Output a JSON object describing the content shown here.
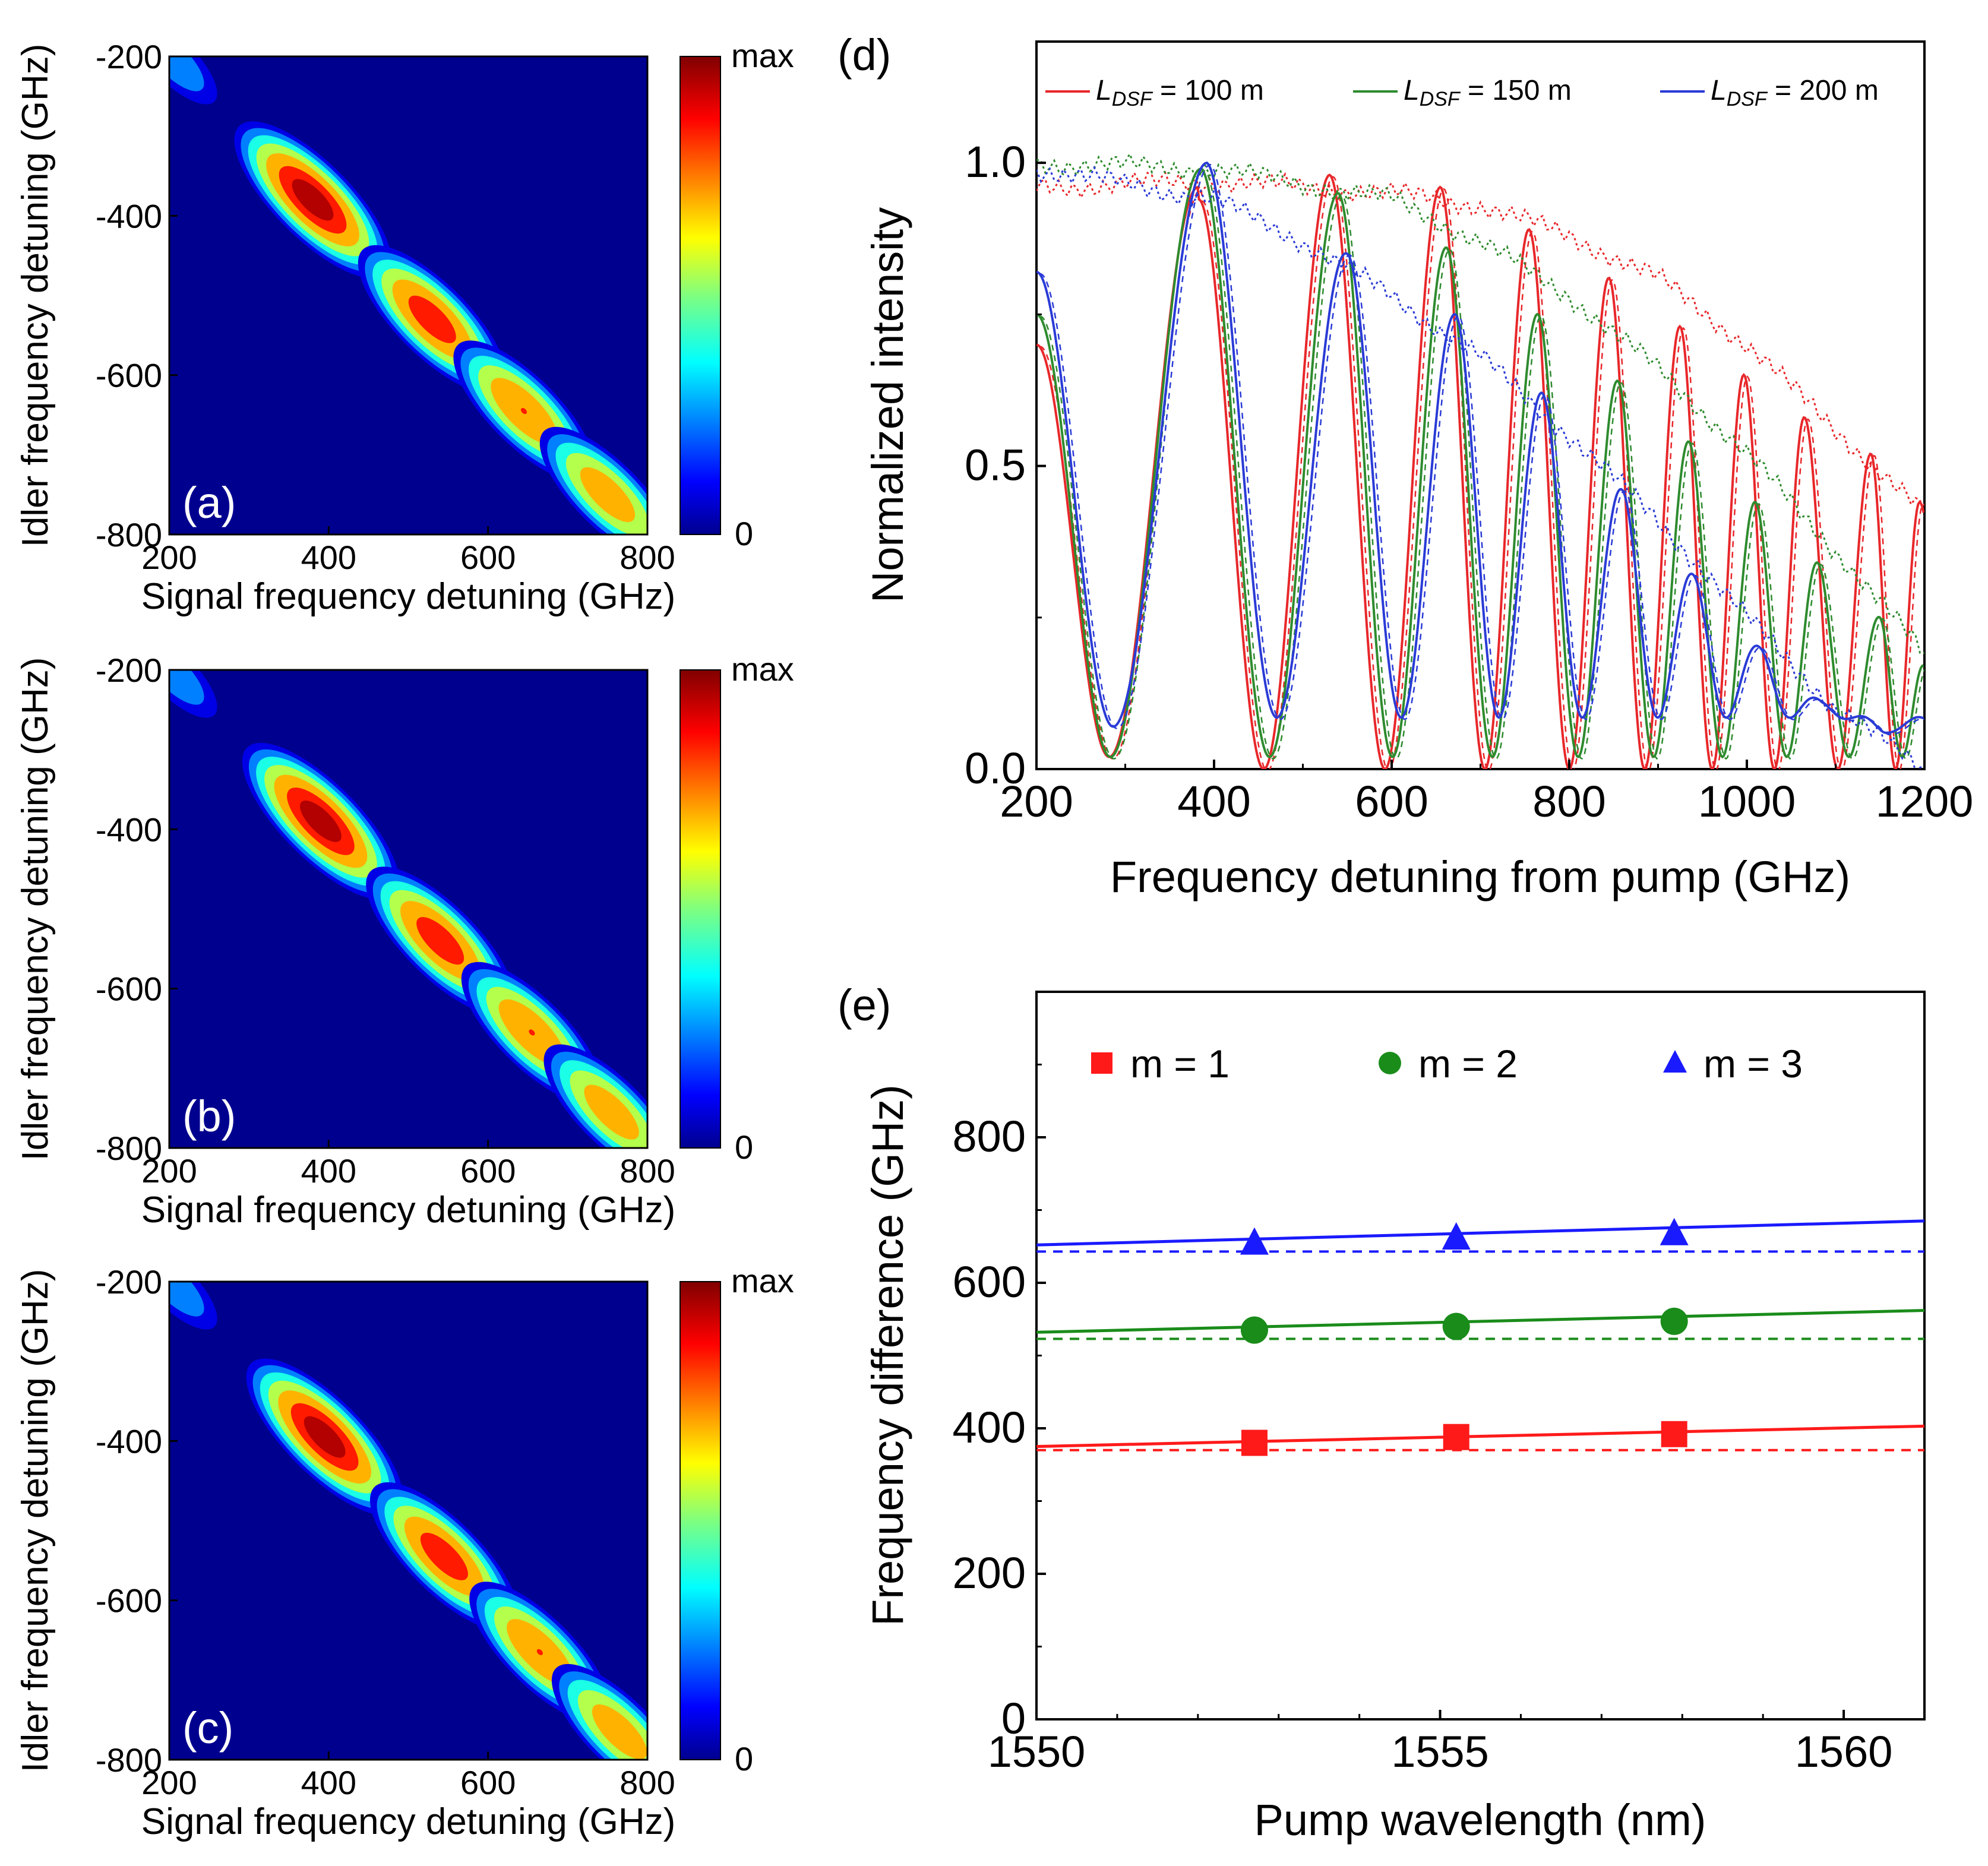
{
  "chart_data": [
    {
      "panel": "(a)",
      "type": "heatmap",
      "xlabel": "Signal frequency detuning (GHz)",
      "ylabel": "Idler frequency detuning (GHz)",
      "xlim": [
        200,
        800
      ],
      "ylim": [
        -800,
        -200
      ],
      "xticks": [
        "200",
        "400",
        "600",
        "800"
      ],
      "yticks": [
        "-200",
        "-400",
        "-600",
        "-800"
      ],
      "colorbar": {
        "max_label": "max",
        "min_label": "0"
      },
      "spots": [
        {
          "signal": 205,
          "idler": -205,
          "amplitude": 0.38
        },
        {
          "signal": 380,
          "idler": -380,
          "amplitude": 1.0
        },
        {
          "signal": 530,
          "idler": -530,
          "amplitude": 0.92
        },
        {
          "signal": 645,
          "idler": -645,
          "amplitude": 0.85
        },
        {
          "signal": 750,
          "idler": -750,
          "amplitude": 0.8
        }
      ]
    },
    {
      "panel": "(b)",
      "type": "heatmap",
      "xlabel": "Signal frequency detuning (GHz)",
      "ylabel": "Idler frequency detuning (GHz)",
      "xlim": [
        200,
        800
      ],
      "ylim": [
        -800,
        -200
      ],
      "xticks": [
        "200",
        "400",
        "600",
        "800"
      ],
      "yticks": [
        "-200",
        "-400",
        "-600",
        "-800"
      ],
      "colorbar": {
        "max_label": "max",
        "min_label": "0"
      },
      "spots": [
        {
          "signal": 205,
          "idler": -205,
          "amplitude": 0.38
        },
        {
          "signal": 390,
          "idler": -390,
          "amplitude": 1.0
        },
        {
          "signal": 540,
          "idler": -540,
          "amplitude": 0.92
        },
        {
          "signal": 655,
          "idler": -655,
          "amplitude": 0.85
        },
        {
          "signal": 755,
          "idler": -755,
          "amplitude": 0.8
        }
      ]
    },
    {
      "panel": "(c)",
      "type": "heatmap",
      "xlabel": "Signal frequency detuning (GHz)",
      "ylabel": "Idler frequency detuning (GHz)",
      "xlim": [
        200,
        800
      ],
      "ylim": [
        -800,
        -200
      ],
      "xticks": [
        "200",
        "400",
        "600",
        "800"
      ],
      "yticks": [
        "-200",
        "-400",
        "-600",
        "-800"
      ],
      "colorbar": {
        "max_label": "max",
        "min_label": "0"
      },
      "spots": [
        {
          "signal": 205,
          "idler": -205,
          "amplitude": 0.38
        },
        {
          "signal": 395,
          "idler": -395,
          "amplitude": 1.0
        },
        {
          "signal": 545,
          "idler": -545,
          "amplitude": 0.92
        },
        {
          "signal": 665,
          "idler": -665,
          "amplitude": 0.85
        },
        {
          "signal": 765,
          "idler": -765,
          "amplitude": 0.8
        }
      ]
    },
    {
      "panel": "(d)",
      "type": "line",
      "xlabel": "Frequency detuning from pump (GHz)",
      "ylabel": "Normalized intensity",
      "xlim": [
        200,
        1200
      ],
      "ylim": [
        0,
        1.2
      ],
      "xticks": [
        "200",
        "400",
        "600",
        "800",
        "1000",
        "1200"
      ],
      "yticks": [
        "0.0",
        "0.5",
        "1.0"
      ],
      "legend_position": "top",
      "series": [
        {
          "name_prefix": "L",
          "name_sub": "DSF",
          "name_suffix": " = 100 m",
          "color": "#e8272a",
          "peaks": [
            {
              "x": 382,
              "y": 0.96
            },
            {
              "x": 530,
              "y": 1.0
            },
            {
              "x": 655,
              "y": 0.98
            },
            {
              "x": 755,
              "y": 0.91
            },
            {
              "x": 845,
              "y": 0.83
            },
            {
              "x": 925,
              "y": 0.75
            },
            {
              "x": 997,
              "y": 0.67
            },
            {
              "x": 1065,
              "y": 0.6
            },
            {
              "x": 1140,
              "y": 0.54
            },
            {
              "x": 1195,
              "y": 0.46
            }
          ],
          "envelope": {
            "x": [
              200,
              400,
              600,
              700,
              800,
              900,
              1000,
              1100,
              1200
            ],
            "y": [
              0.96,
              0.97,
              0.95,
              0.93,
              0.88,
              0.81,
              0.7,
              0.56,
              0.42
            ]
          }
        },
        {
          "name_prefix": "L",
          "name_sub": "DSF",
          "name_suffix": " = 150 m",
          "color": "#2e8b2e",
          "peaks": [
            {
              "x": 385,
              "y": 0.99
            },
            {
              "x": 540,
              "y": 0.95
            },
            {
              "x": 662,
              "y": 0.86
            },
            {
              "x": 765,
              "y": 0.75
            },
            {
              "x": 855,
              "y": 0.64
            },
            {
              "x": 935,
              "y": 0.54
            },
            {
              "x": 1010,
              "y": 0.44
            },
            {
              "x": 1080,
              "y": 0.34
            },
            {
              "x": 1150,
              "y": 0.25
            },
            {
              "x": 1200,
              "y": 0.17
            }
          ],
          "envelope": {
            "x": [
              200,
              400,
              600,
              700,
              800,
              900,
              1000,
              1100,
              1200
            ],
            "y": [
              1.0,
              0.99,
              0.94,
              0.87,
              0.78,
              0.66,
              0.52,
              0.36,
              0.19
            ]
          }
        },
        {
          "name_prefix": "L",
          "name_sub": "DSF",
          "name_suffix": " = 200 m",
          "color": "#2a3bd6",
          "peaks": [
            {
              "x": 392,
              "y": 1.0
            },
            {
              "x": 550,
              "y": 0.85
            },
            {
              "x": 672,
              "y": 0.75
            },
            {
              "x": 770,
              "y": 0.62
            },
            {
              "x": 860,
              "y": 0.46
            },
            {
              "x": 940,
              "y": 0.32
            },
            {
              "x": 1015,
              "y": 0.2
            },
            {
              "x": 1085,
              "y": 0.11
            },
            {
              "x": 1155,
              "y": 0.06
            }
          ],
          "envelope": {
            "x": [
              200,
              400,
              500,
              600,
              700,
              800,
              900,
              1000,
              1100,
              1200
            ],
            "y": [
              0.99,
              0.94,
              0.87,
              0.78,
              0.68,
              0.55,
              0.41,
              0.25,
              0.1,
              0.0
            ]
          }
        }
      ]
    },
    {
      "panel": "(e)",
      "type": "scatter",
      "xlabel": "Pump wavelength (nm)",
      "ylabel": "Frequency difference (GHz)",
      "xlim": [
        1550,
        1561
      ],
      "ylim": [
        0,
        1000
      ],
      "xticks": [
        "1550",
        "1555",
        "1560"
      ],
      "yticks": [
        "0",
        "200",
        "400",
        "600",
        "800"
      ],
      "legend_position": "top",
      "series": [
        {
          "name": "m = 1",
          "marker": "square",
          "color": "#ff1a1a",
          "x": [
            1552.7,
            1555.2,
            1557.9
          ],
          "y": [
            380,
            388,
            392
          ],
          "fit": {
            "x": [
              1550,
              1561
            ],
            "y": [
              375,
              403
            ]
          },
          "theory": {
            "x": [
              1550,
              1561
            ],
            "y": [
              370,
              370
            ]
          }
        },
        {
          "name": "m = 2",
          "marker": "circle",
          "color": "#1a8c1a",
          "x": [
            1552.7,
            1555.2,
            1557.9
          ],
          "y": [
            535,
            540,
            547
          ],
          "fit": {
            "x": [
              1550,
              1561
            ],
            "y": [
              532,
              562
            ]
          },
          "theory": {
            "x": [
              1550,
              1561
            ],
            "y": [
              523,
              523
            ]
          }
        },
        {
          "name": "m = 3",
          "marker": "triangle",
          "color": "#1a1aff",
          "x": [
            1552.7,
            1555.2,
            1557.9
          ],
          "y": [
            655,
            662,
            668
          ],
          "fit": {
            "x": [
              1550,
              1561
            ],
            "y": [
              652,
              685
            ]
          },
          "theory": {
            "x": [
              1550,
              1561
            ],
            "y": [
              643,
              643
            ]
          }
        }
      ]
    }
  ]
}
